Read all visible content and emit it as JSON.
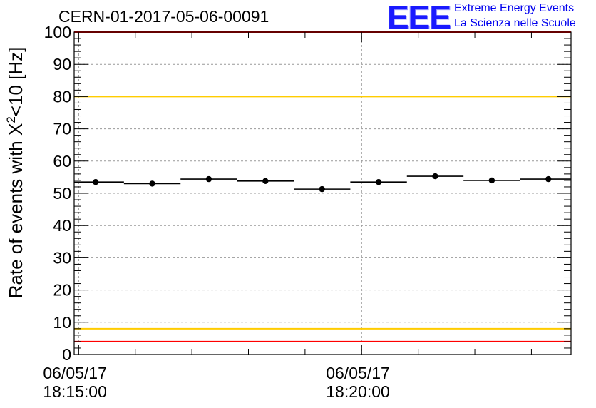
{
  "title": "CERN-01-2017-05-06-00091",
  "logo": {
    "mark": "EEE",
    "line1": "Extreme Energy Events",
    "line2": "La Scienza nelle Scuole"
  },
  "chart_data": {
    "type": "scatter",
    "ylabel_prefix": "Rate of events with X",
    "ylabel_sup": "2",
    "ylabel_suffix": "<10 [Hz]",
    "ylim": [
      0,
      100
    ],
    "yticks": [
      0,
      10,
      20,
      30,
      40,
      50,
      60,
      70,
      80,
      90,
      100
    ],
    "xticks": [
      {
        "date": "06/05/17",
        "time": "18:15:00"
      },
      {
        "date": "06/05/17",
        "time": "18:20:00"
      }
    ],
    "xlim_minutes_from_1815": [
      -0.08,
      8.7
    ],
    "grid": true,
    "points": [
      {
        "x": 0.3,
        "y": 53.5
      },
      {
        "x": 1.3,
        "y": 53.0
      },
      {
        "x": 2.3,
        "y": 54.4
      },
      {
        "x": 3.3,
        "y": 53.8
      },
      {
        "x": 4.3,
        "y": 51.3
      },
      {
        "x": 5.3,
        "y": 53.5
      },
      {
        "x": 6.3,
        "y": 55.3
      },
      {
        "x": 7.3,
        "y": 54.0
      },
      {
        "x": 8.3,
        "y": 54.4
      }
    ],
    "bin_half_width_minutes": 0.5,
    "reference_lines": [
      {
        "y": 100,
        "color": "#ff0000"
      },
      {
        "y": 80,
        "color": "#ffcc00"
      },
      {
        "y": 8,
        "color": "#ffcc00"
      },
      {
        "y": 4,
        "color": "#ff0000"
      }
    ]
  }
}
